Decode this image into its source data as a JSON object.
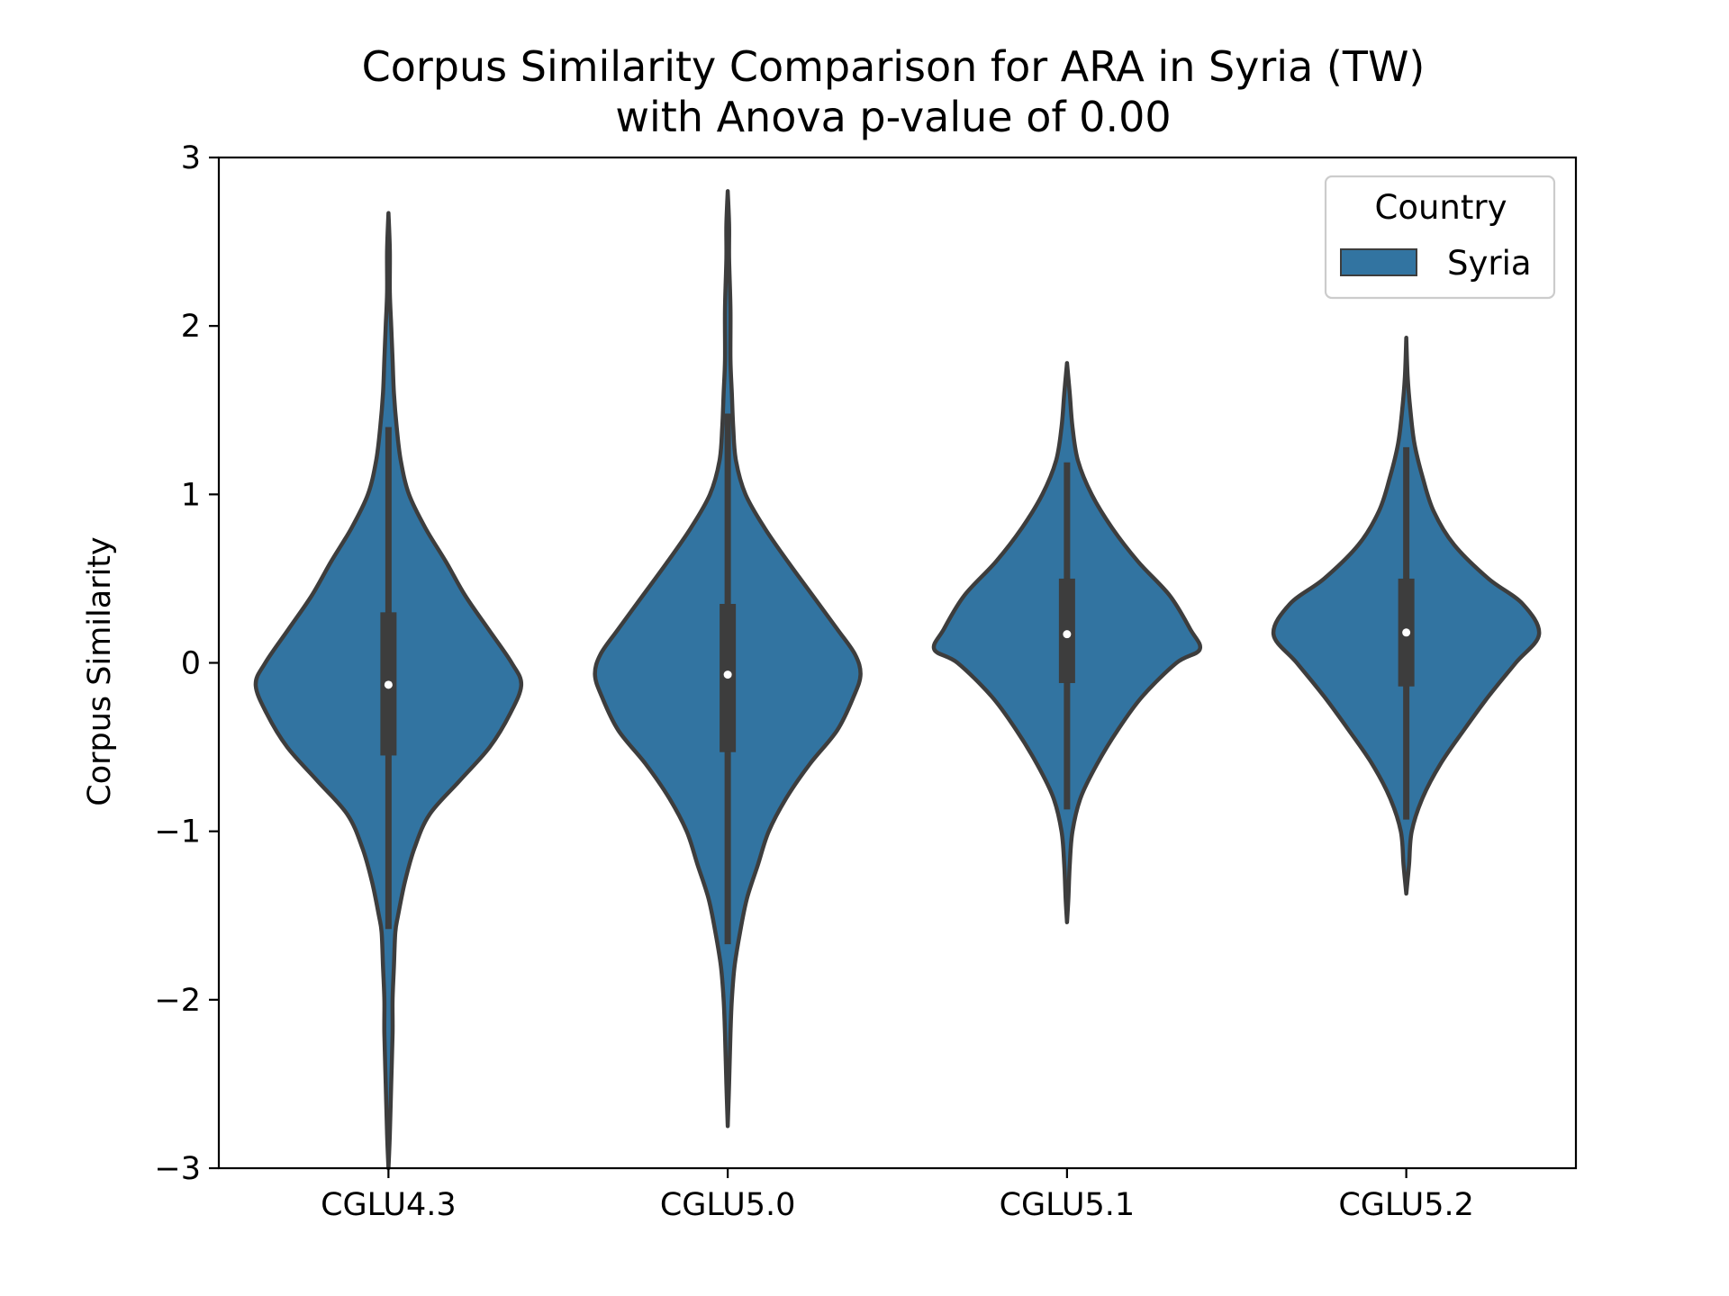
{
  "chart_data": {
    "type": "violin",
    "title_line1": "Corpus Similarity Comparison for ARA in Syria (TW)",
    "title_line2": "with Anova p-value of 0.00",
    "xlabel": "",
    "ylabel": "Corpus Similarity",
    "ylim": [
      -3,
      3
    ],
    "yticks": [
      -3,
      -2,
      -1,
      0,
      1,
      2,
      3
    ],
    "ytick_labels": [
      "−3",
      "−2",
      "−1",
      "0",
      "1",
      "2",
      "3"
    ],
    "categories": [
      "CGLU4.3",
      "CGLU5.0",
      "CGLU5.1",
      "CGLU5.2"
    ],
    "legend": {
      "title": "Country",
      "entries": [
        "Syria"
      ],
      "placement": "top-right"
    },
    "grid": false,
    "colors": {
      "violin_fill": "#3274a1",
      "violin_edge": "#3d3d3d",
      "box": "#3d3d3d",
      "median": "#ffffff"
    },
    "series": [
      {
        "name": "Syria",
        "violins": [
          {
            "category": "CGLU4.3",
            "median": -0.13,
            "q1": -0.55,
            "q3": 0.3,
            "whisker_low": -1.58,
            "whisker_high": 1.4,
            "min": -3.0,
            "max": 2.67,
            "density": [
              [
                -3.0,
                0.0
              ],
              [
                -2.8,
                0.01
              ],
              [
                -2.5,
                0.02
              ],
              [
                -2.2,
                0.03
              ],
              [
                -2.0,
                0.03
              ],
              [
                -1.8,
                0.04
              ],
              [
                -1.6,
                0.05
              ],
              [
                -1.5,
                0.07
              ],
              [
                -1.3,
                0.12
              ],
              [
                -1.1,
                0.19
              ],
              [
                -0.9,
                0.3
              ],
              [
                -0.7,
                0.52
              ],
              [
                -0.5,
                0.74
              ],
              [
                -0.3,
                0.89
              ],
              [
                -0.13,
                0.97
              ],
              [
                0.0,
                0.9
              ],
              [
                0.2,
                0.73
              ],
              [
                0.4,
                0.56
              ],
              [
                0.6,
                0.42
              ],
              [
                0.8,
                0.27
              ],
              [
                1.0,
                0.15
              ],
              [
                1.2,
                0.09
              ],
              [
                1.4,
                0.06
              ],
              [
                1.6,
                0.04
              ],
              [
                1.8,
                0.03
              ],
              [
                2.0,
                0.02
              ],
              [
                2.2,
                0.01
              ],
              [
                2.45,
                0.01
              ],
              [
                2.67,
                0.0
              ]
            ]
          },
          {
            "category": "CGLU5.0",
            "median": -0.07,
            "q1": -0.53,
            "q3": 0.35,
            "whisker_low": -1.67,
            "whisker_high": 1.48,
            "min": -2.75,
            "max": 2.8,
            "density": [
              [
                -2.75,
                0.0
              ],
              [
                -2.5,
                0.01
              ],
              [
                -2.2,
                0.02
              ],
              [
                -2.0,
                0.03
              ],
              [
                -1.8,
                0.05
              ],
              [
                -1.6,
                0.09
              ],
              [
                -1.4,
                0.14
              ],
              [
                -1.2,
                0.22
              ],
              [
                -1.0,
                0.3
              ],
              [
                -0.8,
                0.43
              ],
              [
                -0.6,
                0.6
              ],
              [
                -0.4,
                0.8
              ],
              [
                -0.2,
                0.92
              ],
              [
                -0.07,
                0.97
              ],
              [
                0.05,
                0.93
              ],
              [
                0.2,
                0.8
              ],
              [
                0.4,
                0.62
              ],
              [
                0.6,
                0.44
              ],
              [
                0.8,
                0.27
              ],
              [
                1.0,
                0.13
              ],
              [
                1.2,
                0.06
              ],
              [
                1.4,
                0.04
              ],
              [
                1.6,
                0.03
              ],
              [
                1.8,
                0.02
              ],
              [
                2.1,
                0.02
              ],
              [
                2.4,
                0.01
              ],
              [
                2.6,
                0.01
              ],
              [
                2.8,
                0.0
              ]
            ]
          },
          {
            "category": "CGLU5.1",
            "median": 0.17,
            "q1": -0.12,
            "q3": 0.5,
            "whisker_low": -0.87,
            "whisker_high": 1.19,
            "min": -1.54,
            "max": 1.78,
            "density": [
              [
                -1.54,
                0.0
              ],
              [
                -1.4,
                0.01
              ],
              [
                -1.2,
                0.02
              ],
              [
                -1.0,
                0.04
              ],
              [
                -0.8,
                0.1
              ],
              [
                -0.6,
                0.22
              ],
              [
                -0.4,
                0.37
              ],
              [
                -0.2,
                0.55
              ],
              [
                0.0,
                0.8
              ],
              [
                0.08,
                0.97
              ],
              [
                0.2,
                0.9
              ],
              [
                0.4,
                0.75
              ],
              [
                0.6,
                0.52
              ],
              [
                0.8,
                0.33
              ],
              [
                1.0,
                0.18
              ],
              [
                1.2,
                0.08
              ],
              [
                1.4,
                0.04
              ],
              [
                1.6,
                0.02
              ],
              [
                1.78,
                0.0
              ]
            ]
          },
          {
            "category": "CGLU5.2",
            "median": 0.18,
            "q1": -0.14,
            "q3": 0.5,
            "whisker_low": -0.93,
            "whisker_high": 1.28,
            "min": -1.37,
            "max": 1.93,
            "density": [
              [
                -1.37,
                0.0
              ],
              [
                -1.2,
                0.02
              ],
              [
                -1.0,
                0.04
              ],
              [
                -0.8,
                0.12
              ],
              [
                -0.6,
                0.25
              ],
              [
                -0.4,
                0.42
              ],
              [
                -0.2,
                0.6
              ],
              [
                0.0,
                0.8
              ],
              [
                0.17,
                0.97
              ],
              [
                0.35,
                0.85
              ],
              [
                0.5,
                0.6
              ],
              [
                0.7,
                0.35
              ],
              [
                0.9,
                0.2
              ],
              [
                1.1,
                0.12
              ],
              [
                1.3,
                0.06
              ],
              [
                1.5,
                0.03
              ],
              [
                1.7,
                0.01
              ],
              [
                1.93,
                0.0
              ]
            ]
          }
        ]
      }
    ]
  }
}
